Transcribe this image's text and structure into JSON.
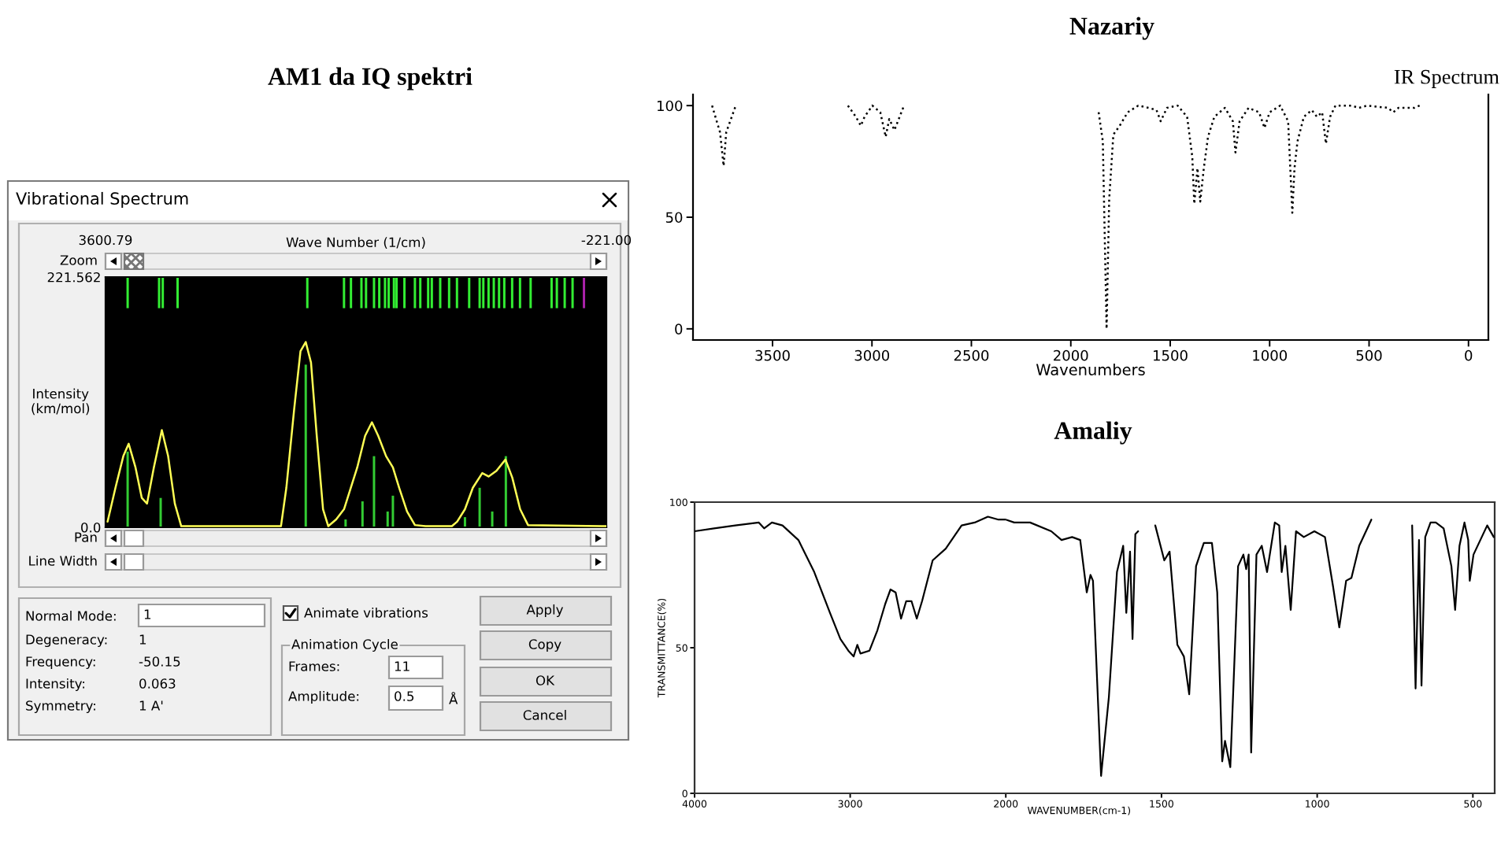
{
  "chart_data": [
    {
      "type": "line",
      "title": "AM1 da IQ spektri",
      "subtitle": "Vibrational Spectrum",
      "xlabel": "Wave Number (1/cm)",
      "ylabel": "Intensity\n(km/mol)",
      "xlim": [
        3600.79,
        -221.0
      ],
      "xticks": [
        3600.79,
        {
          "value": -221.0,
          "label": "-221.00"
        }
      ],
      "ylim": [
        0,
        221.562
      ],
      "yticks": [
        {
          "value": 0,
          "label": "0.0"
        },
        221.562
      ],
      "series": [
        {
          "type": "line",
          "color": "#ffff55",
          "x": [
            3585,
            3525,
            3465,
            3424,
            3372,
            3324,
            3284,
            3232,
            3171,
            3123,
            3072,
            3023,
            2262,
            2221,
            2161,
            2113,
            2073,
            2033,
            1989,
            1941,
            1901,
            1841,
            1781,
            1680,
            1620,
            1568,
            1520,
            1460,
            1408,
            1360,
            1300,
            1240,
            1159,
            958,
            918,
            858,
            798,
            726,
            678,
            618,
            549,
            497,
            437,
            377,
            -221
          ],
          "values": [
            5,
            35,
            63,
            74,
            53,
            26,
            21,
            53,
            86,
            63,
            21,
            1,
            1,
            35,
            105,
            156,
            164,
            146,
            81,
            16,
            1,
            7,
            16,
            53,
            81,
            93,
            81,
            63,
            53,
            35,
            14,
            2,
            1,
            1,
            5,
            16,
            35,
            48,
            45,
            50,
            60,
            44,
            16,
            2,
            1
          ]
        },
        {
          "type": "bar",
          "color": "#33cc33",
          "x": [
            3432,
            3180,
            2073,
            1769,
            1640,
            1552,
            1448,
            1408,
            858,
            746,
            650,
            546
          ],
          "values": [
            67,
            26,
            144,
            7,
            23,
            63,
            14,
            28,
            9,
            35,
            14,
            63
          ]
        },
        {
          "type": "bar",
          "colors": [
            "#33ee33",
            "#33ee33",
            "#33ee33",
            "#33ee33",
            "#33ee33",
            "#33ee33",
            "#33ee33",
            "#33ee33",
            "#33ee33",
            "#33ee33",
            "#33ee33",
            "#33ee33",
            "#33ee33",
            "#33ee33",
            "#33ee33",
            "#33ee33",
            "#33ee33",
            "#33ee33",
            "#33ee33",
            "#33ee33",
            "#33ee33",
            "#33ee33",
            "#33ee33",
            "#33ee33",
            "#33ee33",
            "#33ee33",
            "#33ee33",
            "#33ee33",
            "#33ee33",
            "#33ee33",
            "#33ee33",
            "#33ee33",
            "#33ee33",
            "#33ee33",
            "#33ee33",
            "#33ee33",
            "#33ee33",
            "#aa22aa"
          ],
          "x": [
            3432,
            3192,
            3164,
            3051,
            2061,
            1781,
            1728,
            1648,
            1613,
            1552,
            1512,
            1468,
            1440,
            1400,
            1380,
            1320,
            1240,
            1199,
            1139,
            1111,
            1047,
            979,
            919,
            826,
            746,
            718,
            678,
            638,
            598,
            558,
            498,
            438,
            357,
            197,
            157,
            97,
            37,
            -50
          ],
          "base": [
            194,
            194,
            194,
            194,
            194,
            194,
            194,
            194,
            194,
            194,
            194,
            194,
            194,
            194,
            194,
            194,
            194,
            194,
            194,
            194,
            194,
            194,
            194,
            194,
            194,
            194,
            194,
            194,
            194,
            194,
            194,
            194,
            194,
            194,
            194,
            194,
            194,
            194
          ],
          "values": [
            27,
            27,
            27,
            27,
            27,
            27,
            27,
            27,
            27,
            27,
            27,
            27,
            27,
            27,
            27,
            27,
            27,
            27,
            27,
            27,
            27,
            27,
            27,
            27,
            27,
            27,
            27,
            27,
            27,
            27,
            27,
            27,
            27,
            27,
            27,
            27,
            27,
            27
          ]
        }
      ]
    },
    {
      "type": "other",
      "annotations": [
        "Zoom",
        "Pan",
        "Line Width",
        "Normal Mode:",
        "1",
        "Degeneracy:",
        "1",
        "Frequency:",
        "-50.15",
        "Intensity:",
        "0.063",
        "Symmetry:",
        "1 A'",
        "Animate vibrations",
        "Animation Cycle",
        "Frames:",
        "11",
        "Amplitude:",
        "0.5",
        "Å",
        "Apply",
        "Copy",
        "OK",
        "Cancel"
      ]
    },
    {
      "type": "line",
      "title": "Nazariy",
      "subtitle": "IR Spectrum",
      "xlabel": "Wavenumbers",
      "xlim": [
        3900,
        -100
      ],
      "xticks": [
        3500,
        3000,
        2500,
        2000,
        1500,
        1000,
        500,
        0
      ],
      "ylim": [
        -5,
        105
      ],
      "yticks": [
        0,
        50,
        100
      ],
      "line_style": "dotted",
      "color": "#000000",
      "x": [
        3804,
        3764,
        3746,
        3733,
        3685,
        3400,
        3121,
        3081,
        3056,
        3037,
        2998,
        2958,
        2931,
        2913,
        2887,
        2839,
        2400,
        1860,
        1839,
        1820,
        1807,
        1786,
        1754,
        1714,
        1661,
        1608,
        1569,
        1548,
        1516,
        1463,
        1415,
        1389,
        1379,
        1363,
        1349,
        1331,
        1310,
        1278,
        1225,
        1185,
        1172,
        1151,
        1106,
        1053,
        1026,
        1000,
        947,
        907,
        886,
        875,
        860,
        828,
        788,
        762,
        736,
        717,
        696,
        669,
        590,
        550,
        510,
        405,
        378,
        352,
        272,
        246
      ],
      "values": [
        100,
        88,
        73,
        88,
        100,
        null,
        100,
        95,
        91,
        95,
        100,
        97,
        86,
        94,
        89,
        100,
        null,
        97,
        84,
        0,
        58,
        87,
        91,
        97,
        100,
        99,
        98,
        93,
        99,
        100,
        95,
        77,
        56,
        72,
        57,
        72,
        86,
        95,
        99,
        93,
        79,
        93,
        99,
        97,
        90,
        97,
        100,
        93,
        52,
        72,
        84,
        95,
        98,
        95,
        97,
        83,
        95,
        100,
        100,
        99,
        100,
        99,
        97,
        99,
        99,
        100
      ]
    },
    {
      "type": "line",
      "ylabel": "TRANSMITTANCE(%)",
      "xlim": [
        4000,
        2000
      ],
      "xticks": [
        4000,
        3000,
        2000
      ],
      "ylim": [
        0,
        100
      ],
      "yticks": [
        0,
        50,
        100
      ],
      "color": "#000000",
      "x": [
        4000,
        3875,
        3739,
        3587,
        3553,
        3503,
        3435,
        3333,
        3231,
        3130,
        3063,
        3012,
        2978,
        2954,
        2934,
        2876,
        2825,
        2775,
        2741,
        2708,
        2673,
        2640,
        2606,
        2572,
        2538,
        2470,
        2386,
        2284,
        2200,
        2115,
        2047,
        2000
      ],
      "values": [
        90,
        91,
        92,
        93,
        91,
        93,
        92,
        87,
        76,
        62,
        53,
        49,
        47,
        51,
        48,
        49,
        56,
        65,
        70,
        69,
        60,
        66,
        66,
        60,
        66,
        80,
        84,
        92,
        93,
        95,
        94,
        94
      ]
    },
    {
      "type": "line",
      "title": "Amaliy",
      "xlabel": "WAVENUMBER(cm-1)",
      "xlim": [
        2000,
        430
      ],
      "xticks": [
        1500,
        1000,
        500
      ],
      "ylim": [
        0,
        100
      ],
      "yticks": [
        0,
        50,
        100
      ],
      "tick_labels": "x",
      "color": "#000000",
      "x": [
        2000,
        1973,
        1922,
        1854,
        1821,
        1787,
        1761,
        1740,
        1728,
        1720,
        1694,
        1669,
        1643,
        1623,
        1613,
        1601,
        1593,
        1584,
        1575,
        1550,
        1520,
        1491,
        1474,
        1449,
        1428,
        1411,
        1389,
        1364,
        1338,
        1321,
        1305,
        1296,
        1279,
        1254,
        1237,
        1228,
        1220,
        1212,
        1195,
        1178,
        1161,
        1136,
        1122,
        1114,
        1102,
        1085,
        1068,
        1043,
        1009,
        975,
        949,
        929,
        907,
        890,
        865,
        826,
        760,
        695,
        684,
        673,
        665,
        653,
        636,
        619,
        594,
        569,
        557,
        543,
        527,
        515,
        510,
        498,
        476,
        454,
        433
      ],
      "values": [
        94,
        93,
        93,
        90,
        87,
        88,
        87,
        69,
        75,
        73,
        6,
        33,
        76,
        85,
        62,
        83,
        53,
        89,
        90,
        null,
        92,
        80,
        83,
        51,
        47,
        34,
        78,
        86,
        86,
        69,
        11,
        18,
        9,
        78,
        82,
        77,
        82,
        14,
        82,
        85,
        76,
        93,
        92,
        76,
        85,
        63,
        90,
        88,
        90,
        88,
        71,
        57,
        73,
        74,
        85,
        94,
        null,
        92,
        36,
        87,
        37,
        88,
        93,
        93,
        91,
        78,
        63,
        85,
        93,
        87,
        73,
        82,
        87,
        92,
        88
      ]
    }
  ]
}
